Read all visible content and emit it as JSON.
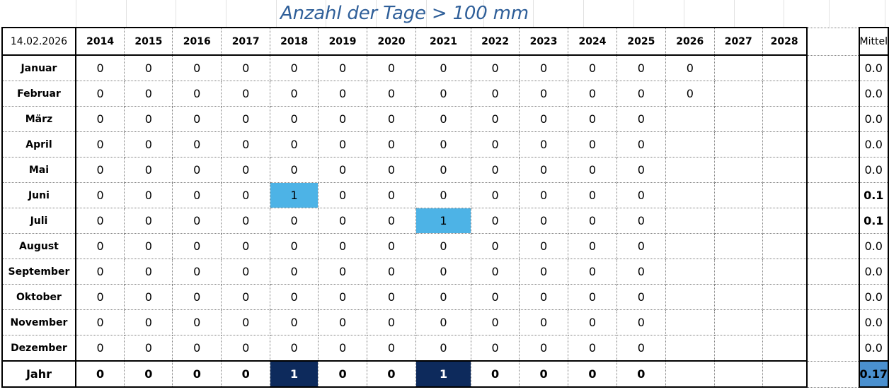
{
  "title": "Anzahl der Tage > 100 mm",
  "date": "14.02.2026",
  "years": [
    "2014",
    "2015",
    "2016",
    "2017",
    "2018",
    "2019",
    "2020",
    "2021",
    "2022",
    "2023",
    "2024",
    "2025",
    "2026",
    "2027",
    "2028"
  ],
  "mittel_label": "Mittel",
  "rows": [
    {
      "month": "Januar",
      "values": [
        "0",
        "0",
        "0",
        "0",
        "0",
        "0",
        "0",
        "0",
        "0",
        "0",
        "0",
        "0",
        "0",
        "",
        ""
      ],
      "mittel": "0.0"
    },
    {
      "month": "Februar",
      "values": [
        "0",
        "0",
        "0",
        "0",
        "0",
        "0",
        "0",
        "0",
        "0",
        "0",
        "0",
        "0",
        "0",
        "",
        ""
      ],
      "mittel": "0.0"
    },
    {
      "month": "März",
      "values": [
        "0",
        "0",
        "0",
        "0",
        "0",
        "0",
        "0",
        "0",
        "0",
        "0",
        "0",
        "0",
        "",
        "",
        ""
      ],
      "mittel": "0.0"
    },
    {
      "month": "April",
      "values": [
        "0",
        "0",
        "0",
        "0",
        "0",
        "0",
        "0",
        "0",
        "0",
        "0",
        "0",
        "0",
        "",
        "",
        ""
      ],
      "mittel": "0.0"
    },
    {
      "month": "Mai",
      "values": [
        "0",
        "0",
        "0",
        "0",
        "0",
        "0",
        "0",
        "0",
        "0",
        "0",
        "0",
        "0",
        "",
        "",
        ""
      ],
      "mittel": "0.0"
    },
    {
      "month": "Juni",
      "values": [
        "0",
        "0",
        "0",
        "0",
        "1",
        "0",
        "0",
        "0",
        "0",
        "0",
        "0",
        "0",
        "",
        "",
        ""
      ],
      "mittel": "0.1"
    },
    {
      "month": "Juli",
      "values": [
        "0",
        "0",
        "0",
        "0",
        "0",
        "0",
        "0",
        "1",
        "0",
        "0",
        "0",
        "0",
        "",
        "",
        ""
      ],
      "mittel": "0.1"
    },
    {
      "month": "August",
      "values": [
        "0",
        "0",
        "0",
        "0",
        "0",
        "0",
        "0",
        "0",
        "0",
        "0",
        "0",
        "0",
        "",
        "",
        ""
      ],
      "mittel": "0.0"
    },
    {
      "month": "September",
      "values": [
        "0",
        "0",
        "0",
        "0",
        "0",
        "0",
        "0",
        "0",
        "0",
        "0",
        "0",
        "0",
        "",
        "",
        ""
      ],
      "mittel": "0.0"
    },
    {
      "month": "Oktober",
      "values": [
        "0",
        "0",
        "0",
        "0",
        "0",
        "0",
        "0",
        "0",
        "0",
        "0",
        "0",
        "0",
        "",
        "",
        ""
      ],
      "mittel": "0.0"
    },
    {
      "month": "November",
      "values": [
        "0",
        "0",
        "0",
        "0",
        "0",
        "0",
        "0",
        "0",
        "0",
        "0",
        "0",
        "0",
        "",
        "",
        ""
      ],
      "mittel": "0.0"
    },
    {
      "month": "Dezember",
      "values": [
        "0",
        "0",
        "0",
        "0",
        "0",
        "0",
        "0",
        "0",
        "0",
        "0",
        "0",
        "0",
        "",
        "",
        ""
      ],
      "mittel": "0.0"
    }
  ],
  "total": {
    "label": "Jahr",
    "values": [
      "0",
      "0",
      "0",
      "0",
      "1",
      "0",
      "0",
      "1",
      "0",
      "0",
      "0",
      "0",
      "",
      "",
      ""
    ],
    "mittel": "0.17"
  },
  "colors": {
    "title": "#2f5f99",
    "highlight": "#4db3e6",
    "dark": "#0d2a5c",
    "mittel_total": "#4a90cf"
  }
}
